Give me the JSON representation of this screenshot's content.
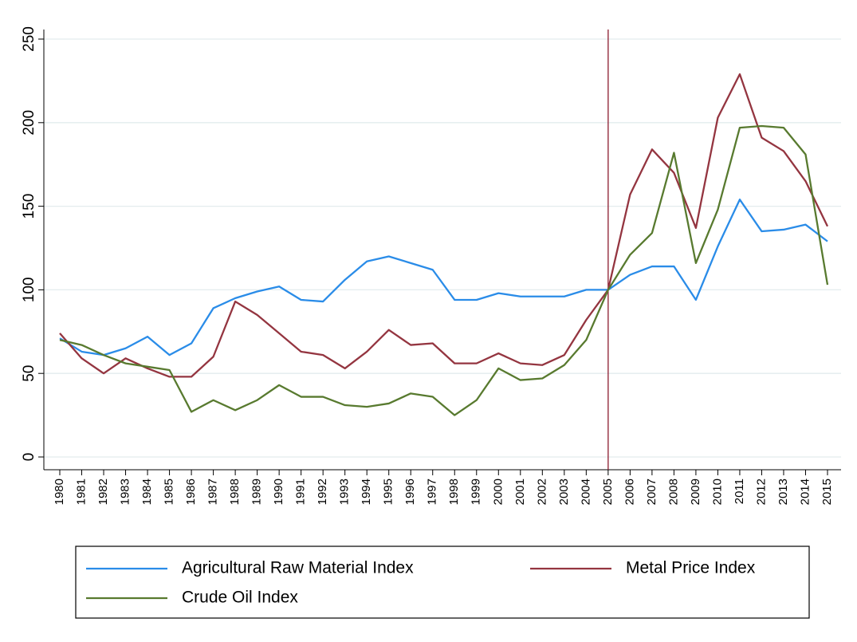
{
  "chart_data": {
    "type": "line",
    "x": [
      1980,
      1981,
      1982,
      1983,
      1984,
      1985,
      1986,
      1987,
      1988,
      1989,
      1990,
      1991,
      1992,
      1993,
      1994,
      1995,
      1996,
      1997,
      1998,
      1999,
      2000,
      2001,
      2002,
      2003,
      2004,
      2005,
      2006,
      2007,
      2008,
      2009,
      2010,
      2011,
      2012,
      2013,
      2014,
      2015
    ],
    "xlim": [
      1980,
      2015
    ],
    "xticks": [
      1980,
      1981,
      1982,
      1983,
      1984,
      1985,
      1986,
      1987,
      1988,
      1989,
      1990,
      1991,
      1992,
      1993,
      1994,
      1995,
      1996,
      1997,
      1998,
      1999,
      2000,
      2001,
      2002,
      2003,
      2004,
      2005,
      2006,
      2007,
      2008,
      2009,
      2010,
      2011,
      2012,
      2013,
      2014,
      2015
    ],
    "ylim": [
      0,
      250
    ],
    "yticks": [
      0,
      50,
      100,
      150,
      200,
      250
    ],
    "grid": true,
    "vline": {
      "x": 2005,
      "color": "#8b1a2e"
    },
    "series": [
      {
        "name": "Agricultural Raw Material Index",
        "color": "#2a8ce8",
        "values": [
          71,
          63,
          61,
          65,
          72,
          61,
          68,
          89,
          95,
          99,
          102,
          94,
          93,
          106,
          117,
          120,
          116,
          112,
          94,
          94,
          98,
          96,
          96,
          96,
          100,
          100,
          109,
          114,
          114,
          94,
          126,
          154,
          135,
          136,
          139,
          129
        ]
      },
      {
        "name": "Metal Price Index",
        "color": "#943540",
        "values": [
          74,
          59,
          50,
          59,
          53,
          48,
          48,
          60,
          93,
          85,
          74,
          63,
          61,
          53,
          63,
          76,
          67,
          68,
          56,
          56,
          62,
          56,
          55,
          61,
          82,
          100,
          157,
          184,
          170,
          137,
          203,
          229,
          191,
          183,
          165,
          138
        ]
      },
      {
        "name": "Crude Oil Index",
        "color": "#587a2f",
        "values": [
          70,
          67,
          61,
          56,
          54,
          52,
          27,
          34,
          28,
          34,
          43,
          36,
          36,
          31,
          30,
          32,
          38,
          36,
          25,
          34,
          53,
          46,
          47,
          55,
          70,
          100,
          121,
          134,
          182,
          116,
          148,
          197,
          198,
          197,
          181,
          103
        ]
      }
    ]
  }
}
